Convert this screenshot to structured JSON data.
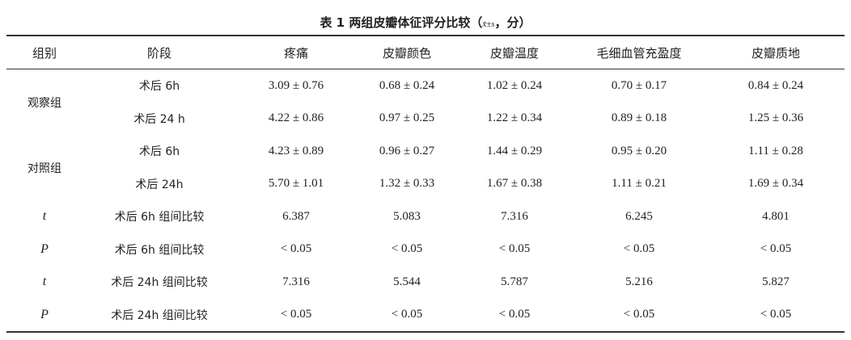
{
  "title": {
    "prefix": "表 1  两组皮瓣体征评分比较（",
    "stat": "x̄±s",
    "suffix": "，分）"
  },
  "table": {
    "header": [
      "组别",
      "阶段",
      "疼痛",
      "皮瓣颜色",
      "皮瓣温度",
      "毛细血管充盈度",
      "皮瓣质地"
    ],
    "groups": [
      {
        "label": "观察组",
        "rows": [
          {
            "stage": "术后 6h",
            "cells": [
              "3.09 ± 0.76",
              "0.68 ± 0.24",
              "1.02 ± 0.24",
              "0.70 ± 0.17",
              "0.84 ± 0.24"
            ]
          },
          {
            "stage": "术后 24 h",
            "cells": [
              "4.22 ± 0.86",
              "0.97 ± 0.25",
              "1.22 ± 0.34",
              "0.89 ± 0.18",
              "1.25 ± 0.36"
            ]
          }
        ]
      },
      {
        "label": "对照组",
        "rows": [
          {
            "stage": "术后 6h",
            "cells": [
              "4.23 ± 0.89",
              "0.96 ± 0.27",
              "1.44 ± 0.29",
              "0.95 ± 0.20",
              "1.11 ± 0.28"
            ]
          },
          {
            "stage": "术后 24h",
            "cells": [
              "5.70 ± 1.01",
              "1.32 ± 0.33",
              "1.67 ± 0.38",
              "1.11 ± 0.21",
              "1.69 ± 0.34"
            ]
          }
        ]
      },
      {
        "label": "t",
        "rows": [
          {
            "stage": "术后 6h 组间比较",
            "cells": [
              "6.387",
              "5.083",
              "7.316",
              "6.245",
              "4.801"
            ]
          }
        ]
      },
      {
        "label": "P",
        "rows": [
          {
            "stage": "术后 6h 组间比较",
            "cells": [
              "< 0.05",
              "< 0.05",
              "< 0.05",
              "< 0.05",
              "< 0.05"
            ]
          }
        ]
      },
      {
        "label": "t",
        "rows": [
          {
            "stage": "术后 24h 组间比较",
            "cells": [
              "7.316",
              "5.544",
              "5.787",
              "5.216",
              "5.827"
            ]
          }
        ]
      },
      {
        "label": "P",
        "rows": [
          {
            "stage": "术后 24h 组间比较",
            "cells": [
              "< 0.05",
              "< 0.05",
              "< 0.05",
              "< 0.05",
              "< 0.05"
            ]
          }
        ]
      }
    ]
  }
}
